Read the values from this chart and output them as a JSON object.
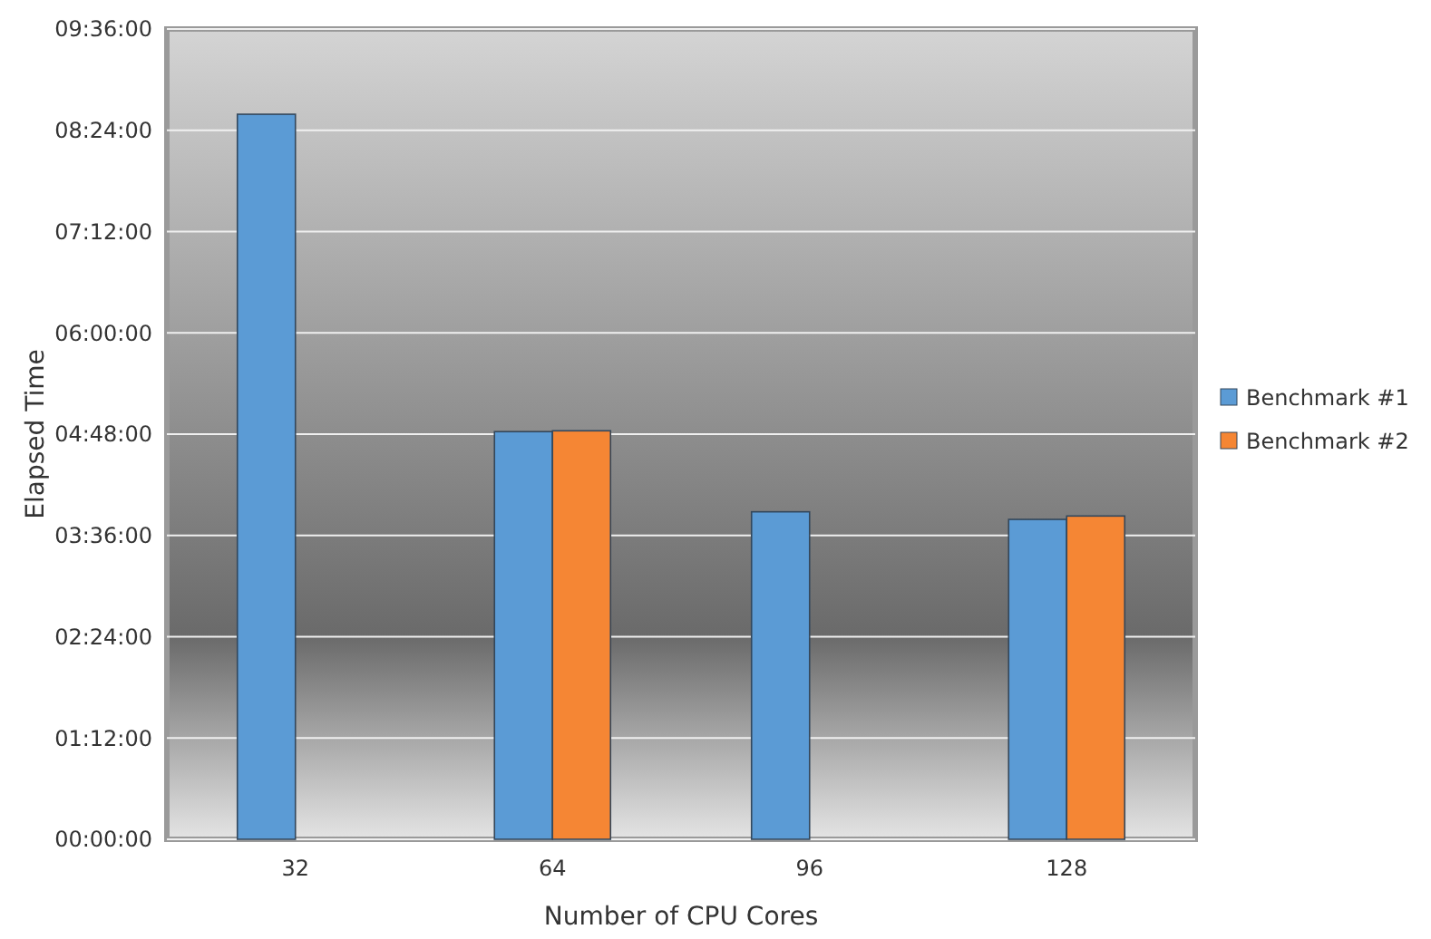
{
  "chart_data": {
    "type": "bar",
    "xlabel": "Number of CPU Cores",
    "ylabel": "Elapsed Time",
    "categories": [
      "32",
      "64",
      "96",
      "128"
    ],
    "series": [
      {
        "name": "Benchmark #1",
        "color": "#5b9bd5",
        "values": [
          8.59,
          4.83,
          3.88,
          3.79
        ]
      },
      {
        "name": "Benchmark #2",
        "color": "#f58634",
        "values": [
          null,
          4.84,
          null,
          3.83
        ]
      }
    ],
    "ylim": [
      0,
      9.6
    ],
    "yticks": [
      {
        "value": 0,
        "label": "00:00:00"
      },
      {
        "value": 1.2,
        "label": "01:12:00"
      },
      {
        "value": 2.4,
        "label": "02:24:00"
      },
      {
        "value": 3.6,
        "label": "03:36:00"
      },
      {
        "value": 4.8,
        "label": "04:48:00"
      },
      {
        "value": 6,
        "label": "06:00:00"
      },
      {
        "value": 7.2,
        "label": "07:12:00"
      },
      {
        "value": 8.4,
        "label": "08:24:00"
      },
      {
        "value": 9.6,
        "label": "09:36:00"
      }
    ],
    "grid": "y",
    "legend": "right"
  }
}
